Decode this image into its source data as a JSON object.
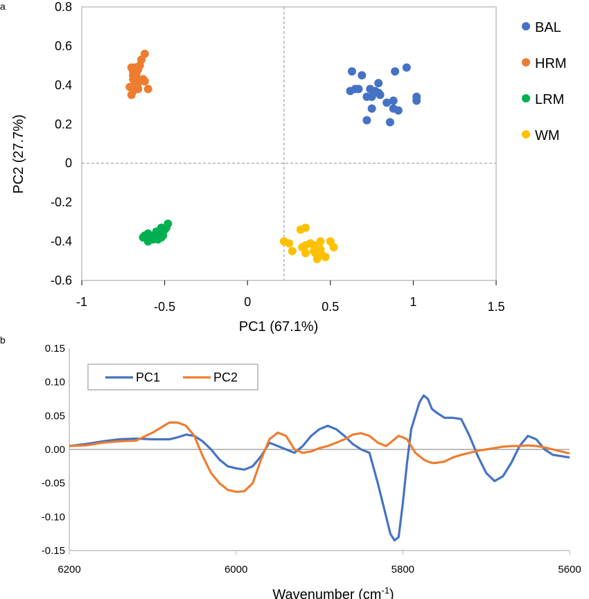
{
  "panels": {
    "a": "a",
    "b": "b"
  },
  "chart_data": [
    {
      "type": "scatter",
      "xlabel": "PC1 (67.1%)",
      "ylabel": "PC2 (27.7%)",
      "xlim": [
        -1,
        1.5
      ],
      "ylim": [
        -0.6,
        0.8
      ],
      "xticks": [
        "-1",
        "-0.5",
        "0",
        "0.5",
        "1",
        "1.5"
      ],
      "yticks": [
        "-0.6",
        "-0.4",
        "-0.2",
        "0",
        "0.2",
        "0.4",
        "0.6",
        "0.8"
      ],
      "grid": false,
      "reference_lines": {
        "x": 0.22,
        "y": 0
      },
      "legend_position": "right",
      "series": [
        {
          "name": "BAL",
          "color": "#4472C4",
          "points": [
            [
              0.63,
              0.47
            ],
            [
              0.69,
              0.45
            ],
            [
              0.62,
              0.37
            ],
            [
              0.65,
              0.38
            ],
            [
              0.67,
              0.38
            ],
            [
              0.72,
              0.34
            ],
            [
              0.74,
              0.38
            ],
            [
              0.76,
              0.36
            ],
            [
              0.79,
              0.36
            ],
            [
              0.79,
              0.41
            ],
            [
              0.8,
              0.35
            ],
            [
              0.75,
              0.34
            ],
            [
              0.77,
              0.37
            ],
            [
              0.84,
              0.31
            ],
            [
              0.89,
              0.47
            ],
            [
              0.96,
              0.49
            ],
            [
              0.88,
              0.32
            ],
            [
              0.88,
              0.28
            ],
            [
              0.91,
              0.27
            ],
            [
              1.02,
              0.32
            ],
            [
              1.02,
              0.34
            ],
            [
              0.75,
              0.28
            ],
            [
              0.72,
              0.22
            ],
            [
              0.86,
              0.21
            ]
          ]
        },
        {
          "name": "HRM",
          "color": "#ED7D31",
          "points": [
            [
              -0.71,
              0.39
            ],
            [
              -0.7,
              0.49
            ],
            [
              -0.69,
              0.47
            ],
            [
              -0.68,
              0.48
            ],
            [
              -0.69,
              0.45
            ],
            [
              -0.67,
              0.44
            ],
            [
              -0.68,
              0.42
            ],
            [
              -0.66,
              0.41
            ],
            [
              -0.66,
              0.48
            ],
            [
              -0.65,
              0.5
            ],
            [
              -0.64,
              0.53
            ],
            [
              -0.62,
              0.56
            ],
            [
              -0.63,
              0.43
            ],
            [
              -0.62,
              0.42
            ],
            [
              -0.7,
              0.35
            ],
            [
              -0.69,
              0.37
            ],
            [
              -0.69,
              0.43
            ],
            [
              -0.67,
              0.46
            ],
            [
              -0.6,
              0.38
            ],
            [
              -0.66,
              0.38
            ],
            [
              -0.68,
              0.49
            ],
            [
              -0.67,
              0.4
            ]
          ]
        },
        {
          "name": "LRM",
          "color": "#00B050",
          "points": [
            [
              -0.63,
              -0.38
            ],
            [
              -0.62,
              -0.37
            ],
            [
              -0.6,
              -0.4
            ],
            [
              -0.58,
              -0.38
            ],
            [
              -0.56,
              -0.37
            ],
            [
              -0.55,
              -0.35
            ],
            [
              -0.54,
              -0.38
            ],
            [
              -0.53,
              -0.36
            ],
            [
              -0.52,
              -0.38
            ],
            [
              -0.51,
              -0.37
            ],
            [
              -0.5,
              -0.34
            ],
            [
              -0.49,
              -0.33
            ],
            [
              -0.48,
              -0.31
            ],
            [
              -0.52,
              -0.33
            ],
            [
              -0.54,
              -0.39
            ],
            [
              -0.6,
              -0.36
            ],
            [
              -0.57,
              -0.39
            ],
            [
              -0.51,
              -0.35
            ]
          ]
        },
        {
          "name": "WM",
          "color": "#FFC000",
          "points": [
            [
              0.22,
              -0.4
            ],
            [
              0.25,
              -0.41
            ],
            [
              0.27,
              -0.45
            ],
            [
              0.32,
              -0.34
            ],
            [
              0.35,
              -0.33
            ],
            [
              0.33,
              -0.43
            ],
            [
              0.35,
              -0.42
            ],
            [
              0.35,
              -0.46
            ],
            [
              0.4,
              -0.42
            ],
            [
              0.41,
              -0.46
            ],
            [
              0.42,
              -0.49
            ],
            [
              0.43,
              -0.47
            ],
            [
              0.44,
              -0.44
            ],
            [
              0.45,
              -0.47
            ],
            [
              0.47,
              -0.48
            ],
            [
              0.44,
              -0.4
            ],
            [
              0.5,
              -0.4
            ],
            [
              0.52,
              -0.43
            ],
            [
              0.4,
              -0.45
            ],
            [
              0.38,
              -0.41
            ]
          ]
        }
      ]
    },
    {
      "type": "line",
      "xlabel": "Wavenumber (cm-1)",
      "ylabel": "",
      "xlim": [
        6200,
        5600
      ],
      "ylim": [
        -0.15,
        0.15
      ],
      "xticks": [
        "6200",
        "6000",
        "5800",
        "5600"
      ],
      "yticks": [
        "-0.15",
        "-0.10",
        "-0.05",
        "0.00",
        "0.05",
        "0.10",
        "0.15"
      ],
      "grid": false,
      "legend_position": "top-left",
      "x": [
        6200,
        6180,
        6160,
        6140,
        6120,
        6100,
        6080,
        6070,
        6060,
        6050,
        6040,
        6030,
        6020,
        6010,
        6000,
        5990,
        5980,
        5970,
        5960,
        5950,
        5940,
        5930,
        5920,
        5910,
        5900,
        5890,
        5880,
        5870,
        5860,
        5850,
        5840,
        5830,
        5820,
        5815,
        5810,
        5805,
        5800,
        5795,
        5790,
        5785,
        5780,
        5775,
        5770,
        5765,
        5760,
        5750,
        5740,
        5730,
        5720,
        5710,
        5700,
        5690,
        5680,
        5670,
        5660,
        5650,
        5640,
        5630,
        5620,
        5610,
        5600
      ],
      "series": [
        {
          "name": "PC1",
          "color": "#4472C4",
          "values": [
            0.005,
            0.008,
            0.012,
            0.015,
            0.016,
            0.015,
            0.015,
            0.018,
            0.022,
            0.02,
            0.012,
            0.0,
            -0.015,
            -0.025,
            -0.028,
            -0.03,
            -0.025,
            -0.01,
            0.01,
            0.005,
            0.0,
            -0.005,
            0.005,
            0.02,
            0.03,
            0.035,
            0.03,
            0.02,
            0.008,
            0.0,
            -0.005,
            -0.05,
            -0.1,
            -0.125,
            -0.135,
            -0.13,
            -0.08,
            -0.02,
            0.03,
            0.05,
            0.07,
            0.08,
            0.075,
            0.06,
            0.055,
            0.047,
            0.047,
            0.045,
            0.02,
            -0.01,
            -0.035,
            -0.047,
            -0.04,
            -0.02,
            0.005,
            0.02,
            0.015,
            0.0,
            -0.008,
            -0.01,
            -0.012
          ]
        },
        {
          "name": "PC2",
          "color": "#ED7D31",
          "values": [
            0.005,
            0.006,
            0.01,
            0.012,
            0.013,
            0.025,
            0.04,
            0.04,
            0.035,
            0.02,
            -0.01,
            -0.035,
            -0.05,
            -0.06,
            -0.063,
            -0.062,
            -0.05,
            -0.015,
            0.015,
            0.025,
            0.02,
            0.0,
            -0.005,
            -0.003,
            0.002,
            0.005,
            0.01,
            0.015,
            0.022,
            0.024,
            0.02,
            0.01,
            0.005,
            0.01,
            0.015,
            0.02,
            0.018,
            0.015,
            0.005,
            -0.005,
            -0.01,
            -0.015,
            -0.018,
            -0.02,
            -0.02,
            -0.018,
            -0.012,
            -0.008,
            -0.005,
            -0.002,
            0.0,
            0.002,
            0.004,
            0.005,
            0.005,
            0.006,
            0.005,
            0.003,
            0.0,
            -0.003,
            -0.006
          ]
        }
      ]
    }
  ]
}
